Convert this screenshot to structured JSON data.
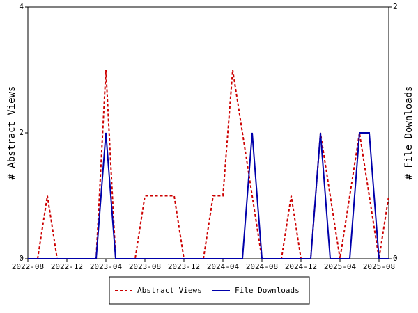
{
  "chart_data": {
    "type": "line",
    "categories": [
      "2022-08",
      null,
      null,
      null,
      "2022-12",
      null,
      null,
      null,
      "2023-04",
      null,
      null,
      null,
      "2023-08",
      null,
      null,
      null,
      "2023-12",
      null,
      null,
      null,
      "2024-04",
      null,
      null,
      null,
      "2024-08",
      null,
      null,
      null,
      "2024-12",
      null,
      null,
      null,
      "2025-04",
      null,
      null,
      null,
      "2025-08",
      null
    ],
    "series": [
      {
        "name": "Abstract Views",
        "color": "#cc0000",
        "dash": true,
        "axis": "y",
        "values": [
          0,
          0,
          1,
          0,
          0,
          0,
          0,
          0,
          3,
          0,
          0,
          0,
          1,
          1,
          1,
          1,
          0,
          0,
          0,
          1,
          1,
          3,
          2,
          1,
          0,
          0,
          0,
          1,
          0,
          0,
          2,
          1,
          0,
          1,
          2,
          1,
          0,
          1
        ]
      },
      {
        "name": "File Downloads",
        "color": "#0000aa",
        "dash": false,
        "axis": "y2",
        "values": [
          0,
          0,
          0,
          0,
          0,
          0,
          0,
          0,
          1,
          0,
          0,
          0,
          0,
          0,
          0,
          0,
          0,
          0,
          0,
          0,
          0,
          0,
          0,
          1,
          0,
          0,
          0,
          0,
          0,
          0,
          1,
          0,
          0,
          0,
          1,
          1,
          0,
          0
        ]
      }
    ],
    "ylabel": "# Abstract Views",
    "y2label": "# File Downloads",
    "ylim": [
      0,
      4
    ],
    "yticks": [
      0,
      2,
      4
    ],
    "y2lim": [
      0,
      2
    ],
    "y2ticks": [
      0,
      2
    ],
    "legend": "bottom"
  }
}
